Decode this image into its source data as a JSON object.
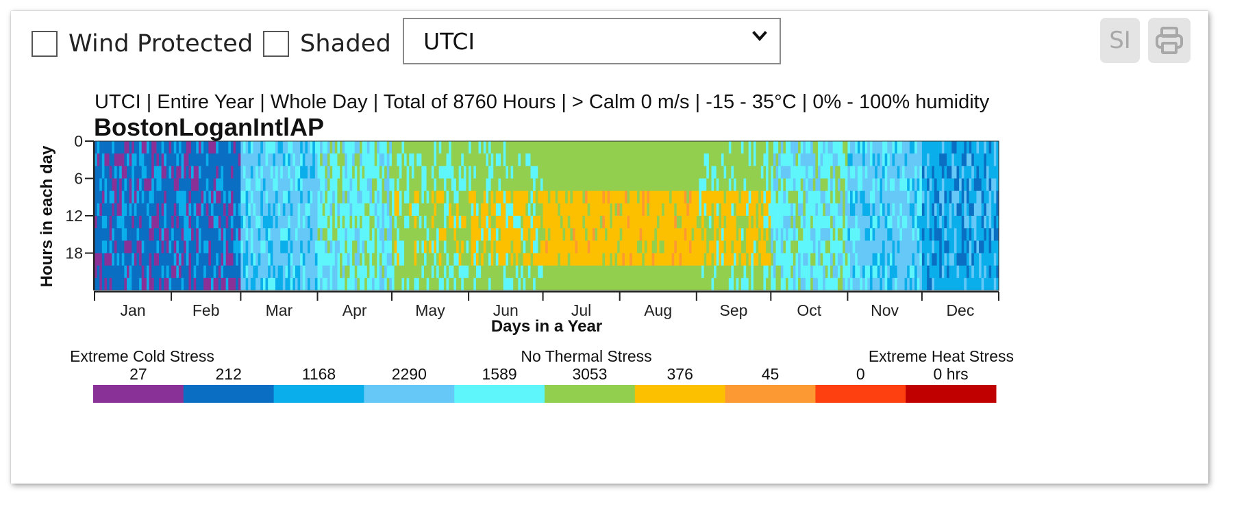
{
  "toolbar": {
    "wind_protected_label": "Wind Protected",
    "shaded_label": "Shaded",
    "metric_select_value": "UTCI",
    "units_button_label": "SI"
  },
  "chart_header": {
    "subtitle": "UTCI | Entire Year | Whole Day | Total of 8760 Hours | > Calm 0 m/s | -15 - 35°C | 0% - 100% humidity",
    "station": "BostonLoganIntlAP"
  },
  "legend": {
    "left_caption": "Extreme Cold Stress",
    "center_caption": "No Thermal Stress",
    "right_caption": "Extreme Heat Stress",
    "counts": [
      "27",
      "212",
      "1168",
      "2290",
      "1589",
      "3053",
      "376",
      "45",
      "0",
      "0 hrs"
    ],
    "colors": [
      "#8a3197",
      "#0a6fc2",
      "#0aaeea",
      "#66c8f6",
      "#5ef5fb",
      "#93cf4f",
      "#fdc000",
      "#fd9932",
      "#fe3f0f",
      "#c00000"
    ]
  },
  "chart_data": {
    "type": "heatmap",
    "title": "BostonLoganIntlAP",
    "subtitle": "UTCI | Entire Year | Whole Day | Total of 8760 Hours | > Calm 0 m/s | -15 - 35°C | 0% - 100% humidity",
    "xlabel": "Days in a Year",
    "ylabel": "Hours in each day",
    "x_range": [
      1,
      365
    ],
    "y_range": [
      0,
      24
    ],
    "x_tick_labels": [
      "Jan",
      "Feb",
      "Mar",
      "Apr",
      "May",
      "Jun",
      "Jul",
      "Aug",
      "Sep",
      "Oct",
      "Nov",
      "Dec"
    ],
    "y_tick_labels": [
      "0",
      "6",
      "12",
      "18"
    ],
    "categories": [
      "Extreme Cold Stress",
      "",
      "",
      "",
      "",
      "No Thermal Stress",
      "",
      "",
      "",
      "Extreme Heat Stress"
    ],
    "category_hours": [
      27,
      212,
      1168,
      2290,
      1589,
      3053,
      376,
      45,
      0,
      0
    ],
    "total_hours": 8760,
    "monthly_dominant_category_index": [
      1,
      1,
      3,
      4,
      5,
      5,
      6,
      6,
      5,
      4,
      3,
      2
    ]
  }
}
